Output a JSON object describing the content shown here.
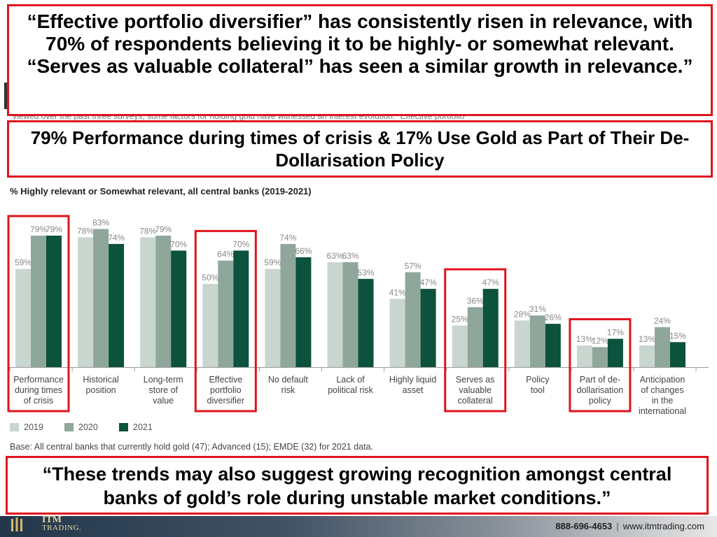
{
  "background_text": "viewed over the past three surveys, some factors for holding gold have witnessed an interest evolution. “Effective portfolio",
  "callouts": {
    "top": "“Effective portfolio diversifier” has consistently risen in relevance, with 70% of respondents believing it to be highly- or somewhat relevant. “Serves as valuable collateral” has seen a similar growth in relevance.”",
    "middle": "79% Performance during times of crisis & 17% Use Gold as Part of Their De-Dollarisation Policy",
    "bottom": "“These trends may also suggest growing recognition amongst central banks of gold’s role during unstable market conditions.”"
  },
  "chart_data": {
    "type": "bar",
    "title": "% Highly relevant or Somewhat relevant, all central banks (2019-2021)",
    "categories": [
      [
        "Performance",
        "during times",
        "of crisis"
      ],
      [
        "Historical",
        "position"
      ],
      [
        "Long-term",
        "store of",
        "value"
      ],
      [
        "Effective",
        "portfolio",
        "diversifier"
      ],
      [
        "No default",
        "risk"
      ],
      [
        "Lack of",
        "political risk"
      ],
      [
        "Highly liquid",
        "asset"
      ],
      [
        "Serves as",
        "valuable",
        "collateral"
      ],
      [
        "Policy",
        "tool"
      ],
      [
        "Part of de-",
        "dollarisation",
        "policy"
      ],
      [
        "Anticipation",
        "of changes",
        "in the",
        "international"
      ]
    ],
    "series": [
      {
        "name": "2019",
        "color": "#c9d6cf",
        "values": [
          59,
          78,
          78,
          50,
          59,
          63,
          41,
          25,
          28,
          13,
          13
        ]
      },
      {
        "name": "2020",
        "color": "#8fa79b",
        "values": [
          79,
          83,
          79,
          64,
          74,
          63,
          57,
          36,
          31,
          12,
          24
        ]
      },
      {
        "name": "2021",
        "color": "#0c523d",
        "values": [
          79,
          74,
          70,
          70,
          66,
          53,
          47,
          47,
          26,
          17,
          15
        ]
      }
    ],
    "ylim": [
      0,
      100
    ],
    "highlighted_categories": [
      0,
      3,
      7,
      9
    ],
    "highlight_color": "#e0141e",
    "legend_position": "bottom-left",
    "grid": false,
    "base_note": "Base: All central banks that currently hold gold (47); Advanced (15); EMDE (32) for 2021 data."
  },
  "footer": {
    "logo_text": "ITM",
    "logo_sub": "TRADING.",
    "phone": "888-696-4653",
    "separator": "|",
    "website": "www.itmtrading.com"
  }
}
